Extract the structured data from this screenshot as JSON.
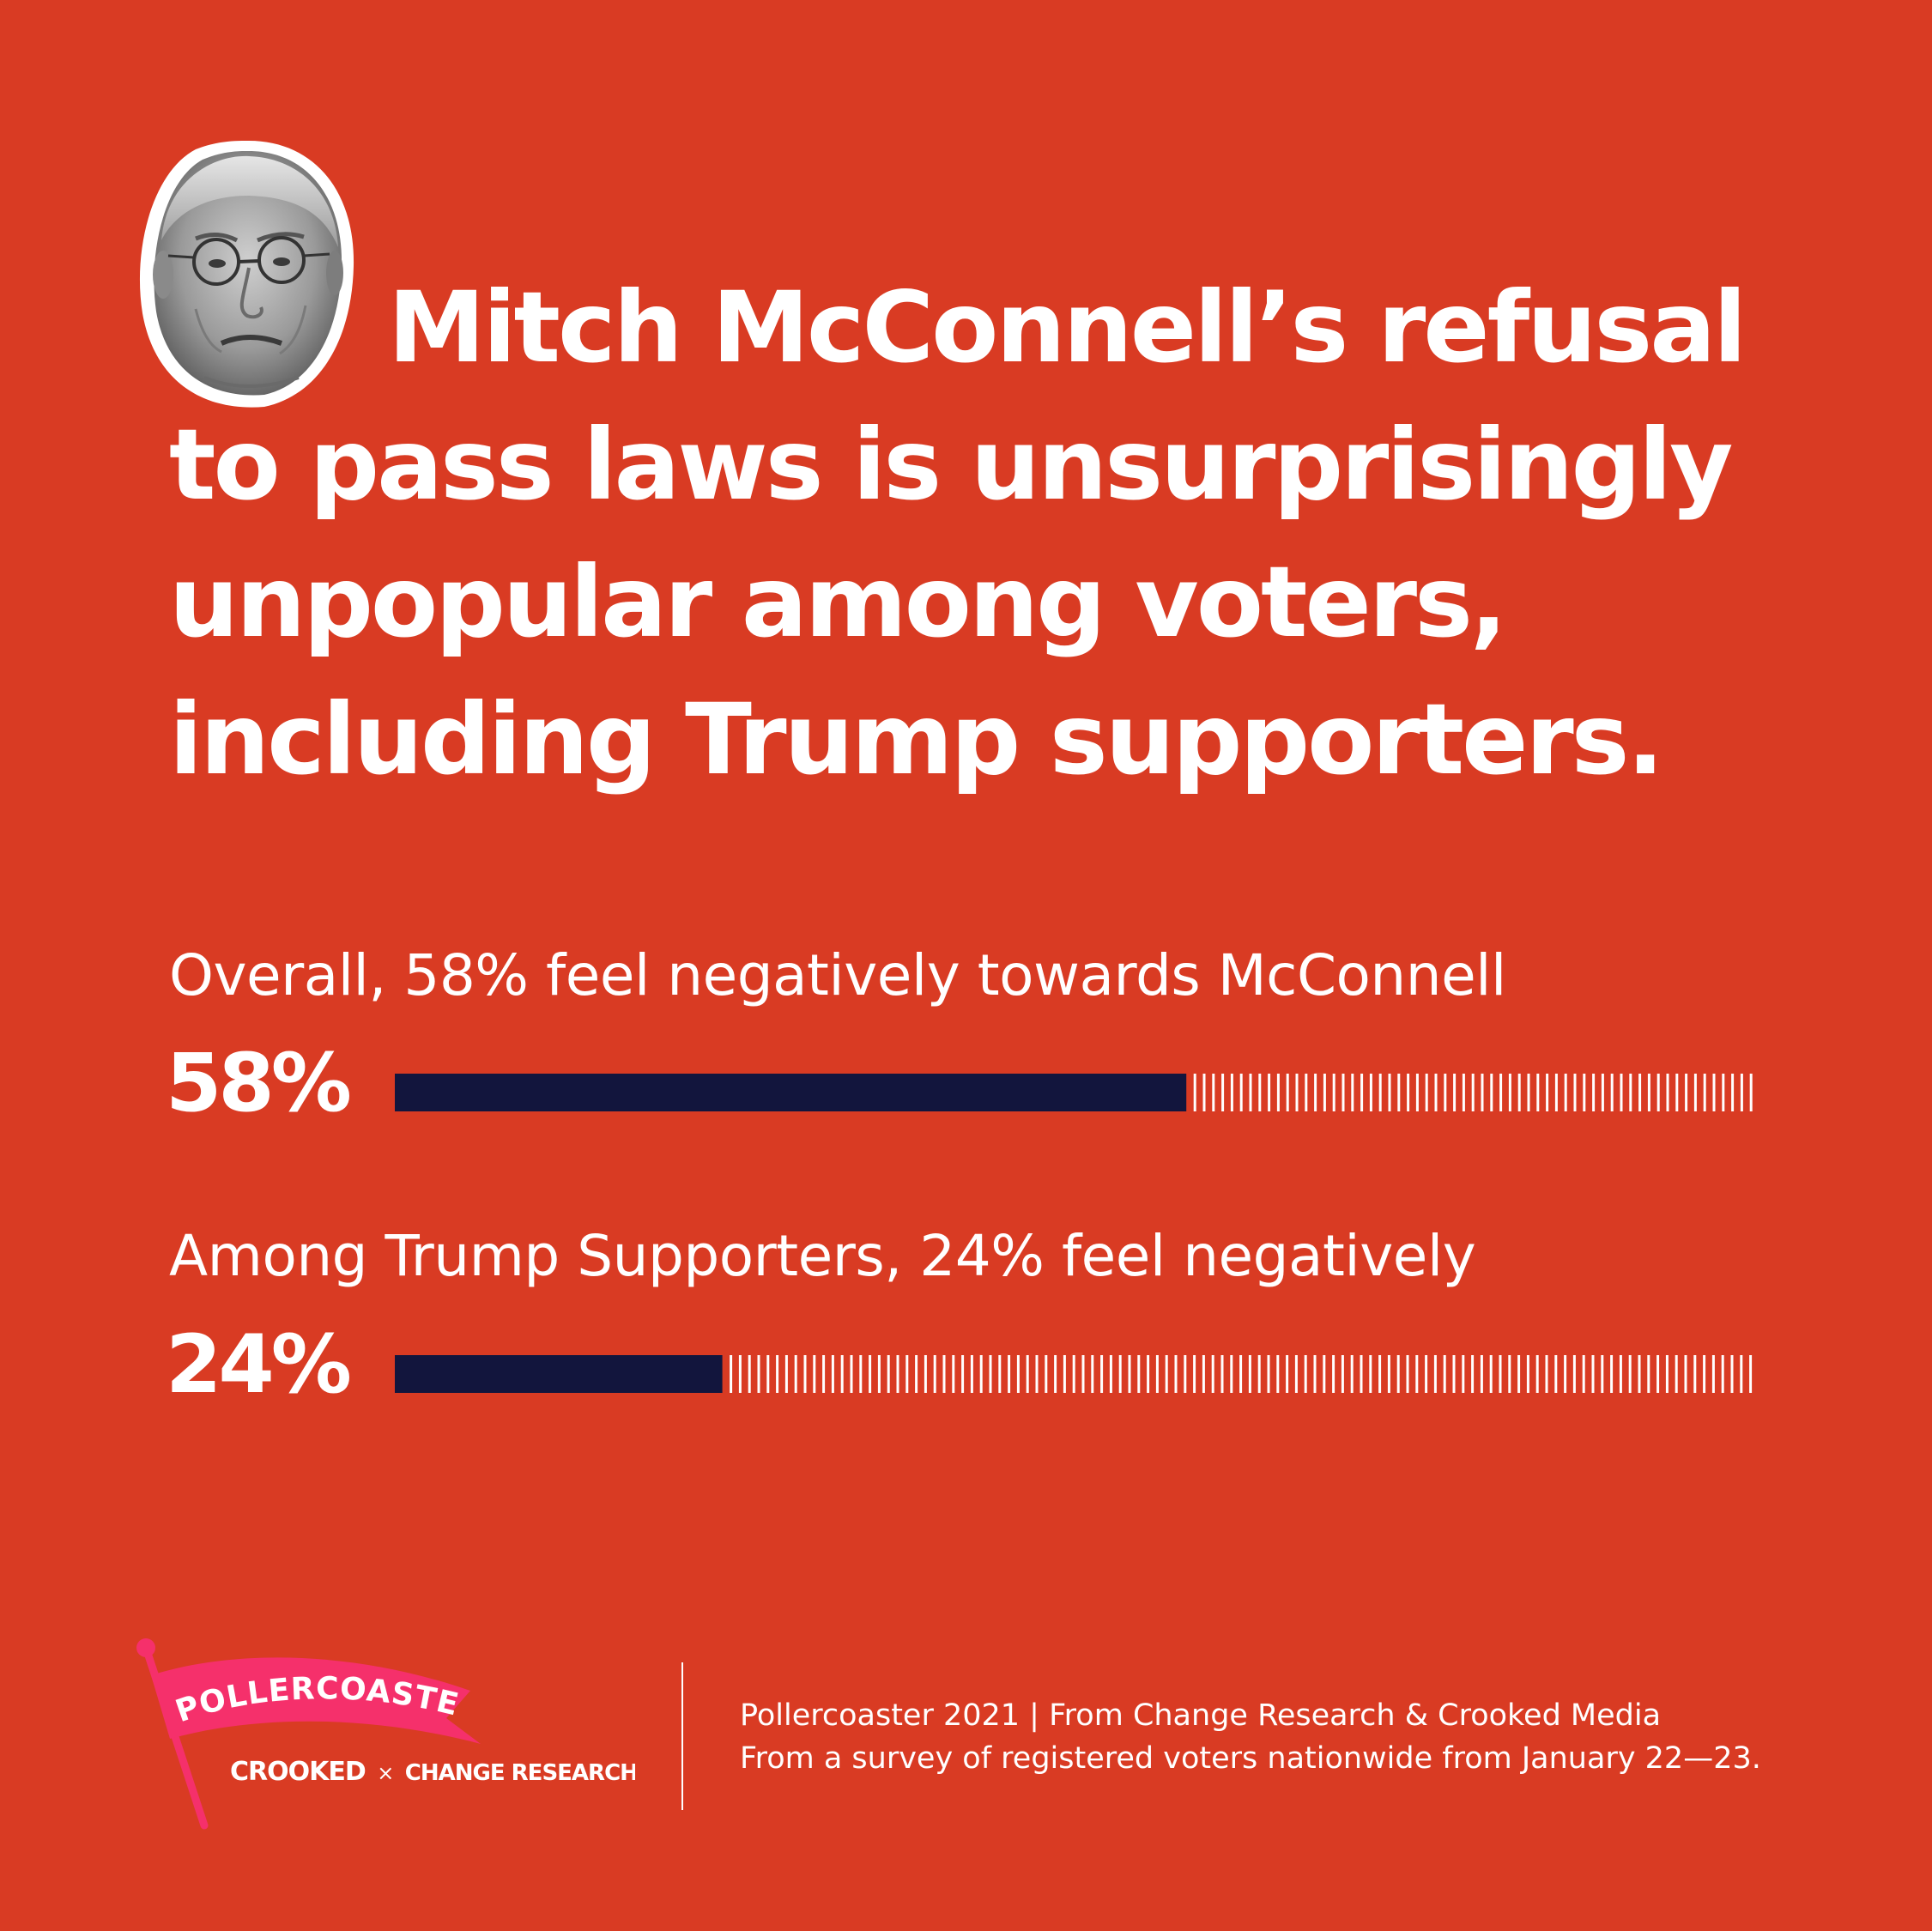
{
  "headline": {
    "lines": [
      "Mitch McConnell’s refusal",
      "to pass laws is unsurprisingly",
      "unpopular among voters,",
      "including Trump supporters."
    ]
  },
  "chart_data": {
    "type": "bar",
    "orientation": "horizontal",
    "xlim": [
      0,
      100
    ],
    "colors": {
      "fill": "#12153D",
      "remainder_ticks": "#ffffff",
      "background": "#D93B23"
    },
    "bars": [
      {
        "caption": "Overall, 58% feel negatively towards McConnell",
        "value_label": "58%",
        "value": 58
      },
      {
        "caption": "Among Trump Supporters, 24% feel negatively",
        "value_label": "24%",
        "value": 24
      }
    ]
  },
  "logo": {
    "flag_text": "POLLERCOASTER",
    "brand_left": "CROOKED",
    "separator": "×",
    "brand_right": "CHANGE RESEARCH",
    "trademark": "™",
    "flag_color": "#F5306B"
  },
  "footer": {
    "line1": "Pollercoaster 2021 | From Change Research & Crooked Media",
    "line2": "From a survey of registered voters nationwide from January 22—23."
  }
}
